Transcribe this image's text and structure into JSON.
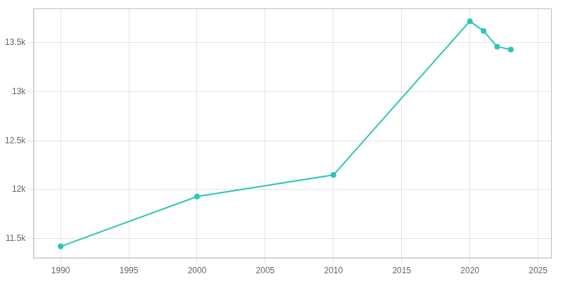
{
  "chart_data": {
    "type": "line",
    "x": [
      1990,
      2000,
      2010,
      2020,
      2021,
      2022,
      2023
    ],
    "values": [
      11420,
      11930,
      12150,
      13720,
      13620,
      13460,
      13430
    ],
    "color": "#2ec4b6",
    "marker": "circle",
    "xlim": [
      1988,
      2026
    ],
    "ylim": [
      11300,
      13850
    ],
    "xticks": [
      1990,
      1995,
      2000,
      2005,
      2010,
      2015,
      2020,
      2025
    ],
    "yticks": [
      {
        "value": 11500,
        "label": "11.5k"
      },
      {
        "value": 12000,
        "label": "12k"
      },
      {
        "value": 12500,
        "label": "12.5k"
      },
      {
        "value": 13000,
        "label": "13k"
      },
      {
        "value": 13500,
        "label": "13.5k"
      }
    ],
    "grid": true
  }
}
